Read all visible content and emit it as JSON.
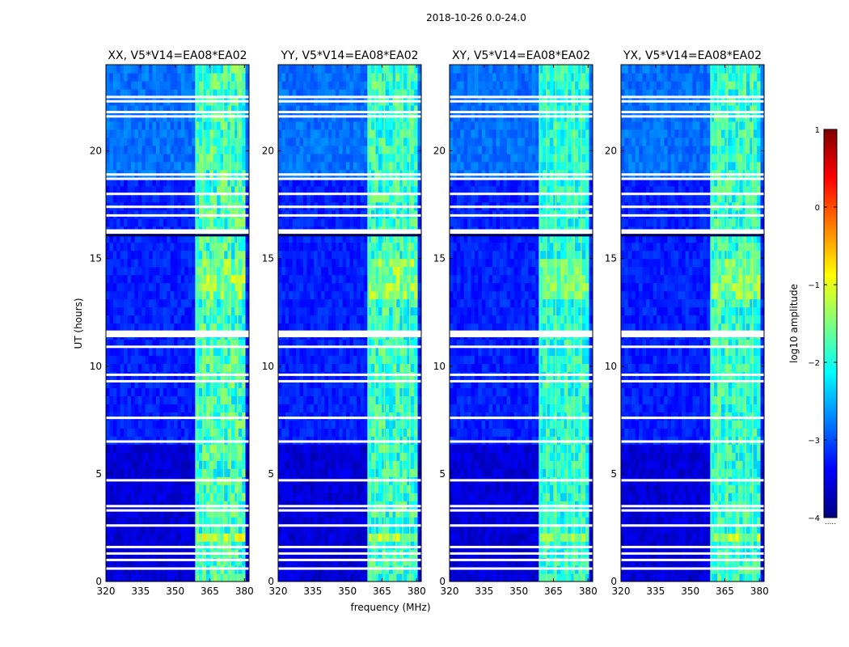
{
  "chart_data": {
    "type": "heatmap",
    "suptitle": "2018-10-26 0.0-24.0",
    "xlabel": "frequency (MHz)",
    "ylabel": "UT (hours)",
    "xlim": [
      320,
      382
    ],
    "ylim": [
      0,
      24
    ],
    "xticks": [
      320,
      335,
      350,
      365,
      380
    ],
    "yticks": [
      0,
      5,
      10,
      15,
      20
    ],
    "panels": [
      {
        "title": "XX, V5*V14=EA08*EA02",
        "band_intensity": 1.0
      },
      {
        "title": "YY, V5*V14=EA08*EA02",
        "band_intensity": 0.9
      },
      {
        "title": "XY, V5*V14=EA08*EA02",
        "band_intensity": 0.75
      },
      {
        "title": "YX, V5*V14=EA08*EA02",
        "band_intensity": 0.85
      }
    ],
    "rfi_band_mhz": [
      359,
      380
    ],
    "flagged_ut_hours": [
      0.6,
      1.0,
      1.3,
      1.6,
      2.6,
      3.3,
      3.5,
      4.7,
      6.5,
      7.6,
      9.3,
      9.6,
      11.4,
      11.5,
      11.6,
      10.9,
      16.2,
      16.3,
      17.0,
      17.4,
      18.0,
      18.7,
      18.9,
      21.6,
      21.8,
      22.3,
      22.5
    ],
    "colorbar": {
      "label": "log10 amplitude",
      "range": [
        -4,
        1
      ],
      "ticks": [
        {
          "value": 1,
          "label": "1"
        },
        {
          "value": 0,
          "label": "0"
        },
        {
          "value": -1,
          "label": "−1"
        },
        {
          "value": -2,
          "label": "−2"
        },
        {
          "value": -3,
          "label": "−3"
        },
        {
          "value": -4,
          "label": "−4"
        }
      ],
      "colormap": [
        "#00007f",
        "#0000ff",
        "#007fff",
        "#00ffff",
        "#7fff7f",
        "#ffff00",
        "#ff7f00",
        "#ff0000",
        "#7f0000"
      ]
    }
  }
}
